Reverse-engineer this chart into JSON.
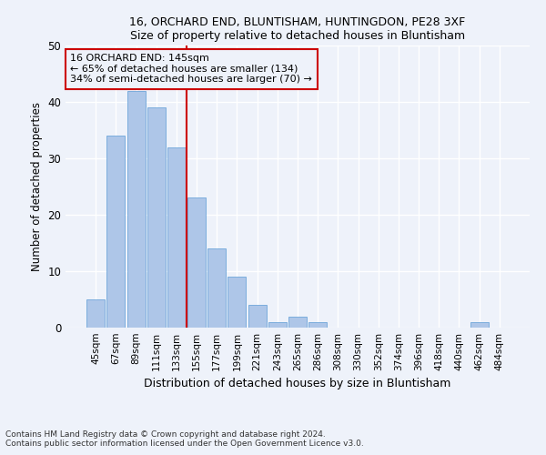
{
  "title1": "16, ORCHARD END, BLUNTISHAM, HUNTINGDON, PE28 3XF",
  "title2": "Size of property relative to detached houses in Bluntisham",
  "xlabel": "Distribution of detached houses by size in Bluntisham",
  "ylabel": "Number of detached properties",
  "bar_labels": [
    "45sqm",
    "67sqm",
    "89sqm",
    "111sqm",
    "133sqm",
    "155sqm",
    "177sqm",
    "199sqm",
    "221sqm",
    "243sqm",
    "265sqm",
    "286sqm",
    "308sqm",
    "330sqm",
    "352sqm",
    "374sqm",
    "396sqm",
    "418sqm",
    "440sqm",
    "462sqm",
    "484sqm"
  ],
  "bar_values": [
    5,
    34,
    42,
    39,
    32,
    23,
    14,
    9,
    4,
    1,
    2,
    1,
    0,
    0,
    0,
    0,
    0,
    0,
    0,
    1,
    0
  ],
  "bar_color": "#aec6e8",
  "bar_edgecolor": "#5b9bd5",
  "vline_x": 4.5,
  "vline_color": "#cc0000",
  "annotation_lines": [
    "16 ORCHARD END: 145sqm",
    "← 65% of detached houses are smaller (134)",
    "34% of semi-detached houses are larger (70) →"
  ],
  "annotation_box_color": "#cc0000",
  "footnote1": "Contains HM Land Registry data © Crown copyright and database right 2024.",
  "footnote2": "Contains public sector information licensed under the Open Government Licence v3.0.",
  "ylim": [
    0,
    50
  ],
  "bg_color": "#eef2fa",
  "grid_color": "#ffffff"
}
